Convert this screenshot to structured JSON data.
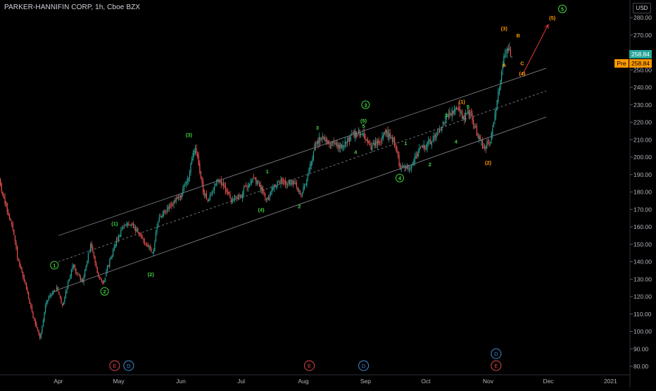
{
  "header": {
    "title": "PARKER-HANNIFIN CORP, 1h, Cboe BZX",
    "currency": "USD",
    "last_price": "258.84",
    "pre_label": "Pre",
    "pre_price": "258.84"
  },
  "colors": {
    "up": "#26a69a",
    "down": "#ef5350",
    "wave_green": "#3fd13f",
    "wave_orange": "#ff9800",
    "arrow": "#e53935",
    "channel": "#787b86"
  },
  "chart_data": {
    "type": "candlestick",
    "title": "PARKER-HANNIFIN CORP, 1h, Cboe BZX",
    "ylim": [
      77,
      286
    ],
    "y_ticks": [
      80,
      90,
      100,
      110,
      120,
      130,
      140,
      150,
      160,
      170,
      180,
      190,
      200,
      210,
      220,
      230,
      240,
      250,
      260,
      270,
      280
    ],
    "y_tick_labels": [
      "80.00",
      "90.00",
      "100.00",
      "110.00",
      "120.00",
      "130.00",
      "140.00",
      "150.00",
      "160.00",
      "170.00",
      "180.00",
      "190.00",
      "200.00",
      "210.00",
      "220.00",
      "230.00",
      "240.00",
      "250.00",
      "260.00",
      "270.00",
      "280.00"
    ],
    "x_ticks": [
      {
        "label": "Apr",
        "date": "2020-04-01"
      },
      {
        "label": "May",
        "date": "2020-05-01"
      },
      {
        "label": "Jun",
        "date": "2020-06-01"
      },
      {
        "label": "Jul",
        "date": "2020-07-01"
      },
      {
        "label": "Aug",
        "date": "2020-08-01"
      },
      {
        "label": "Sep",
        "date": "2020-09-01"
      },
      {
        "label": "Oct",
        "date": "2020-10-01"
      },
      {
        "label": "Nov",
        "date": "2020-11-01"
      },
      {
        "label": "Dec",
        "date": "2020-12-01"
      },
      {
        "label": "2021",
        "date": "2021-01-01"
      }
    ],
    "price_path": [
      [
        "2020-03-02",
        190
      ],
      [
        "2020-03-05",
        175
      ],
      [
        "2020-03-09",
        160
      ],
      [
        "2020-03-12",
        140
      ],
      [
        "2020-03-16",
        125
      ],
      [
        "2020-03-19",
        110
      ],
      [
        "2020-03-23",
        96
      ],
      [
        "2020-03-26",
        118
      ],
      [
        "2020-03-31",
        125
      ],
      [
        "2020-04-03",
        115
      ],
      [
        "2020-04-08",
        138
      ],
      [
        "2020-04-13",
        128
      ],
      [
        "2020-04-17",
        150
      ],
      [
        "2020-04-21",
        132
      ],
      [
        "2020-04-23",
        127
      ],
      [
        "2020-04-29",
        150
      ],
      [
        "2020-05-04",
        162
      ],
      [
        "2020-05-08",
        160
      ],
      [
        "2020-05-13",
        153
      ],
      [
        "2020-05-18",
        145
      ],
      [
        "2020-05-21",
        165
      ],
      [
        "2020-05-27",
        172
      ],
      [
        "2020-06-01",
        178
      ],
      [
        "2020-06-05",
        190
      ],
      [
        "2020-06-08",
        206
      ],
      [
        "2020-06-10",
        196
      ],
      [
        "2020-06-12",
        180
      ],
      [
        "2020-06-15",
        175
      ],
      [
        "2020-06-19",
        188
      ],
      [
        "2020-06-24",
        180
      ],
      [
        "2020-06-26",
        176
      ],
      [
        "2020-07-01",
        178
      ],
      [
        "2020-07-06",
        188
      ],
      [
        "2020-07-10",
        184
      ],
      [
        "2020-07-14",
        176
      ],
      [
        "2020-07-17",
        183
      ],
      [
        "2020-07-21",
        186
      ],
      [
        "2020-07-27",
        185
      ],
      [
        "2020-07-31",
        178
      ],
      [
        "2020-08-04",
        193
      ],
      [
        "2020-08-07",
        208
      ],
      [
        "2020-08-11",
        212
      ],
      [
        "2020-08-14",
        208
      ],
      [
        "2020-08-20",
        206
      ],
      [
        "2020-08-26",
        213
      ],
      [
        "2020-08-31",
        214
      ],
      [
        "2020-09-03",
        205
      ],
      [
        "2020-09-08",
        209
      ],
      [
        "2020-09-11",
        214
      ],
      [
        "2020-09-15",
        210
      ],
      [
        "2020-09-18",
        195
      ],
      [
        "2020-09-23",
        194
      ],
      [
        "2020-09-28",
        205
      ],
      [
        "2020-10-01",
        206
      ],
      [
        "2020-10-06",
        213
      ],
      [
        "2020-10-12",
        224
      ],
      [
        "2020-10-16",
        227
      ],
      [
        "2020-10-20",
        223
      ],
      [
        "2020-10-23",
        226
      ],
      [
        "2020-10-27",
        212
      ],
      [
        "2020-10-30",
        205
      ],
      [
        "2020-11-02",
        209
      ],
      [
        "2020-11-04",
        220
      ],
      [
        "2020-11-06",
        236
      ],
      [
        "2020-11-09",
        260
      ],
      [
        "2020-11-11",
        262
      ],
      [
        "2020-11-13",
        259
      ]
    ],
    "channel_lines": [
      {
        "name": "upper",
        "from": [
          "2020-04-01",
          155
        ],
        "to": [
          "2020-11-30",
          251
        ],
        "style": "solid"
      },
      {
        "name": "middle",
        "from": [
          "2020-04-01",
          140
        ],
        "to": [
          "2020-11-30",
          238
        ],
        "style": "dashed"
      },
      {
        "name": "lower",
        "from": [
          "2020-04-01",
          124
        ],
        "to": [
          "2020-11-30",
          223
        ],
        "style": "solid"
      }
    ],
    "projection_arrow": {
      "from": [
        "2020-11-18",
        247
      ],
      "to": [
        "2020-12-01",
        276
      ]
    },
    "wave_labels": [
      {
        "text": "1",
        "date": "2020-03-30",
        "price": 138,
        "color": "green",
        "circled": true
      },
      {
        "text": "2",
        "date": "2020-04-24",
        "price": 123,
        "color": "green",
        "circled": true
      },
      {
        "text": "(1)",
        "date": "2020-04-29",
        "price": 162,
        "color": "green",
        "circled": false
      },
      {
        "text": "(2)",
        "date": "2020-05-17",
        "price": 133,
        "color": "green",
        "circled": false
      },
      {
        "text": "(3)",
        "date": "2020-06-05",
        "price": 213,
        "color": "green",
        "circled": false
      },
      {
        "text": "(4)",
        "date": "2020-07-11",
        "price": 170,
        "color": "green",
        "circled": false
      },
      {
        "text": "1",
        "date": "2020-07-14",
        "price": 192,
        "color": "green",
        "circled": false
      },
      {
        "text": "2",
        "date": "2020-07-30",
        "price": 172,
        "color": "green",
        "circled": false
      },
      {
        "text": "3",
        "date": "2020-08-08",
        "price": 217,
        "color": "green",
        "circled": false
      },
      {
        "text": "4",
        "date": "2020-08-27",
        "price": 203,
        "color": "green",
        "circled": false
      },
      {
        "text": "(5)",
        "date": "2020-08-31",
        "price": 221,
        "color": "green",
        "circled": false
      },
      {
        "text": "5",
        "date": "2020-08-31",
        "price": 218,
        "color": "green",
        "circled": false
      },
      {
        "text": "3",
        "date": "2020-09-01",
        "price": 230,
        "color": "green",
        "circled": true
      },
      {
        "text": "1",
        "date": "2020-09-21",
        "price": 208,
        "color": "green",
        "circled": false
      },
      {
        "text": "4",
        "date": "2020-09-18",
        "price": 188,
        "color": "green",
        "circled": true
      },
      {
        "text": "2",
        "date": "2020-10-03",
        "price": 196,
        "color": "green",
        "circled": false
      },
      {
        "text": "3",
        "date": "2020-10-11",
        "price": 224,
        "color": "green",
        "circled": false
      },
      {
        "text": "4",
        "date": "2020-10-16",
        "price": 209,
        "color": "green",
        "circled": false
      },
      {
        "text": "5",
        "date": "2020-10-22",
        "price": 229,
        "color": "green",
        "circled": false
      },
      {
        "text": "(1)",
        "date": "2020-10-19",
        "price": 232,
        "color": "orange",
        "circled": false
      },
      {
        "text": "(2)",
        "date": "2020-11-01",
        "price": 197,
        "color": "orange",
        "circled": false
      },
      {
        "text": "(3)",
        "date": "2020-11-09",
        "price": 274,
        "color": "orange",
        "circled": false
      },
      {
        "text": "A",
        "date": "2020-11-09",
        "price": 253,
        "color": "orange",
        "circled": false
      },
      {
        "text": "B",
        "date": "2020-11-16",
        "price": 270,
        "color": "orange",
        "circled": false
      },
      {
        "text": "C",
        "date": "2020-11-18",
        "price": 254,
        "color": "orange",
        "circled": false
      },
      {
        "text": "(4)",
        "date": "2020-11-18",
        "price": 248,
        "color": "orange",
        "circled": false
      },
      {
        "text": "(5)",
        "date": "2020-12-03",
        "price": 280,
        "color": "orange",
        "circled": false
      },
      {
        "text": "5",
        "date": "2020-12-08",
        "price": 285,
        "color": "green",
        "circled": true
      }
    ],
    "event_markers": [
      {
        "text": "E",
        "date": "2020-04-29",
        "kind": "earnings"
      },
      {
        "text": "D",
        "date": "2020-05-06",
        "kind": "dividend"
      },
      {
        "text": "E",
        "date": "2020-08-04",
        "kind": "earnings"
      },
      {
        "text": "D",
        "date": "2020-08-31",
        "kind": "dividend"
      },
      {
        "text": "D",
        "date": "2020-11-05",
        "kind": "dividend"
      },
      {
        "text": "E",
        "date": "2020-11-05",
        "kind": "earnings"
      }
    ]
  }
}
